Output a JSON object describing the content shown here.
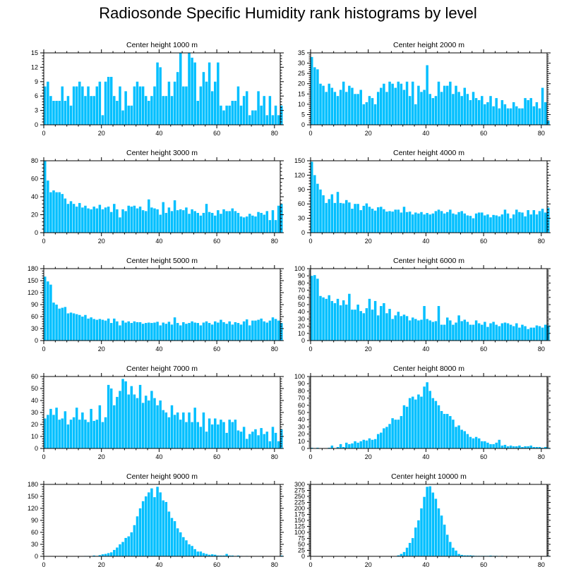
{
  "figure_title": "Radiosonde Specific Humidity rank histograms by level",
  "colors": {
    "bar": "#00BFFF",
    "axis": "#000000",
    "bar_edge": "#ffffff"
  },
  "chart_data": [
    {
      "type": "bar",
      "title": "Center height 1000 m",
      "xlim": [
        0,
        82
      ],
      "ylim": [
        0,
        15
      ],
      "xticks": [
        0,
        20,
        40,
        60,
        80
      ],
      "yticks": [
        0,
        3,
        6,
        9,
        12,
        15
      ],
      "values": [
        8,
        9,
        6,
        5,
        5,
        5,
        8,
        5,
        6,
        4,
        8,
        8,
        9,
        8,
        6,
        8,
        6,
        6,
        8,
        9,
        2,
        9,
        10,
        10,
        6,
        5,
        8,
        3,
        7,
        4,
        4,
        8,
        9,
        8,
        8,
        6,
        5,
        6,
        8,
        13,
        12,
        6,
        6,
        9,
        6,
        9,
        11,
        15,
        8,
        8,
        15,
        14,
        13,
        5,
        8,
        11,
        9,
        13,
        7,
        9,
        13,
        4,
        3,
        4,
        4,
        5,
        5,
        8,
        4,
        6,
        7,
        2,
        3,
        3,
        7,
        4,
        6,
        2,
        6,
        2,
        4,
        2,
        4
      ]
    },
    {
      "type": "bar",
      "title": "Center height 2000 m",
      "xlim": [
        0,
        82
      ],
      "ylim": [
        0,
        35
      ],
      "xticks": [
        0,
        20,
        40,
        60,
        80
      ],
      "yticks": [
        0,
        5,
        10,
        15,
        20,
        25,
        30,
        35
      ],
      "values": [
        33,
        28,
        27,
        20,
        19,
        16,
        20,
        18,
        16,
        14,
        17,
        21,
        16,
        19,
        18,
        15,
        15,
        17,
        10,
        11,
        14,
        13,
        10,
        16,
        18,
        20,
        16,
        21,
        20,
        18,
        21,
        20,
        17,
        21,
        14,
        21,
        10,
        19,
        16,
        17,
        29,
        15,
        13,
        14,
        21,
        16,
        19,
        19,
        21,
        15,
        19,
        16,
        14,
        18,
        15,
        12,
        16,
        13,
        12,
        14,
        10,
        11,
        14,
        9,
        13,
        8,
        12,
        10,
        8,
        8,
        11,
        9,
        8,
        8,
        13,
        12,
        13,
        9,
        11,
        8,
        18,
        11,
        2
      ]
    },
    {
      "type": "bar",
      "title": "Center height 3000 m",
      "xlim": [
        0,
        82
      ],
      "ylim": [
        0,
        80
      ],
      "xticks": [
        0,
        20,
        40,
        60,
        80
      ],
      "yticks": [
        0,
        20,
        40,
        60,
        80
      ],
      "values": [
        80,
        58,
        45,
        47,
        45,
        45,
        43,
        38,
        32,
        35,
        32,
        29,
        33,
        28,
        30,
        27,
        26,
        29,
        27,
        31,
        26,
        28,
        29,
        23,
        32,
        26,
        17,
        26,
        24,
        30,
        29,
        30,
        27,
        29,
        25,
        24,
        37,
        28,
        27,
        26,
        20,
        34,
        22,
        28,
        24,
        36,
        25,
        26,
        25,
        28,
        21,
        26,
        24,
        22,
        19,
        22,
        32,
        23,
        22,
        19,
        25,
        21,
        26,
        24,
        24,
        27,
        24,
        22,
        18,
        17,
        18,
        21,
        19,
        18,
        23,
        22,
        20,
        24,
        14,
        25,
        14,
        30,
        32
      ]
    },
    {
      "type": "bar",
      "title": "Center height 4000 m",
      "xlim": [
        0,
        82
      ],
      "ylim": [
        0,
        150
      ],
      "xticks": [
        0,
        20,
        40,
        60,
        80
      ],
      "yticks": [
        0,
        30,
        60,
        90,
        120,
        150
      ],
      "values": [
        148,
        120,
        102,
        90,
        78,
        62,
        70,
        80,
        62,
        85,
        62,
        61,
        68,
        63,
        50,
        60,
        60,
        47,
        56,
        61,
        54,
        50,
        46,
        53,
        54,
        49,
        44,
        45,
        44,
        48,
        48,
        42,
        54,
        43,
        44,
        38,
        42,
        40,
        43,
        38,
        41,
        38,
        40,
        45,
        48,
        45,
        40,
        43,
        48,
        40,
        38,
        43,
        45,
        40,
        36,
        35,
        30,
        40,
        42,
        42,
        36,
        38,
        32,
        37,
        36,
        34,
        38,
        48,
        40,
        30,
        38,
        48,
        43,
        42,
        34,
        47,
        38,
        47,
        38,
        45,
        50,
        42,
        52
      ]
    },
    {
      "type": "bar",
      "title": "Center height 5000 m",
      "xlim": [
        0,
        82
      ],
      "ylim": [
        0,
        180
      ],
      "xticks": [
        0,
        20,
        40,
        60,
        80
      ],
      "yticks": [
        0,
        30,
        60,
        90,
        120,
        150,
        180
      ],
      "values": [
        160,
        148,
        140,
        95,
        90,
        80,
        82,
        84,
        68,
        70,
        68,
        66,
        64,
        60,
        64,
        55,
        58,
        54,
        52,
        54,
        52,
        50,
        55,
        44,
        55,
        48,
        38,
        50,
        45,
        48,
        44,
        48,
        46,
        46,
        42,
        44,
        45,
        44,
        45,
        47,
        38,
        45,
        42,
        47,
        40,
        58,
        44,
        38,
        46,
        42,
        44,
        48,
        45,
        44,
        38,
        45,
        48,
        44,
        40,
        48,
        45,
        52,
        46,
        42,
        48,
        40,
        46,
        44,
        40,
        48,
        53,
        38,
        50,
        50,
        52,
        55,
        48,
        45,
        50,
        58,
        54,
        50,
        44
      ]
    },
    {
      "type": "bar",
      "title": "Center height 6000 m",
      "xlim": [
        0,
        82
      ],
      "ylim": [
        0,
        100
      ],
      "xticks": [
        0,
        20,
        40,
        60,
        80
      ],
      "yticks": [
        0,
        10,
        20,
        30,
        40,
        50,
        60,
        70,
        80,
        90,
        100
      ],
      "values": [
        90,
        91,
        86,
        62,
        60,
        58,
        63,
        55,
        52,
        58,
        49,
        56,
        50,
        65,
        43,
        43,
        50,
        41,
        38,
        45,
        58,
        43,
        55,
        35,
        48,
        52,
        38,
        44,
        30,
        35,
        40,
        34,
        36,
        34,
        28,
        32,
        30,
        28,
        29,
        48,
        30,
        28,
        26,
        27,
        48,
        22,
        22,
        32,
        28,
        22,
        25,
        35,
        27,
        29,
        26,
        22,
        22,
        28,
        24,
        22,
        26,
        19,
        24,
        26,
        22,
        20,
        24,
        25,
        24,
        22,
        20,
        24,
        18,
        22,
        20,
        16,
        18,
        18,
        21,
        20,
        18,
        22,
        21
      ]
    },
    {
      "type": "bar",
      "title": "Center height 7000 m",
      "xlim": [
        0,
        82
      ],
      "ylim": [
        0,
        60
      ],
      "xticks": [
        0,
        20,
        40,
        60,
        80
      ],
      "yticks": [
        0,
        10,
        20,
        30,
        40,
        50,
        60
      ],
      "values": [
        25,
        28,
        33,
        28,
        34,
        24,
        25,
        31,
        20,
        24,
        26,
        34,
        24,
        30,
        24,
        22,
        33,
        23,
        24,
        36,
        22,
        26,
        53,
        50,
        36,
        43,
        48,
        58,
        56,
        45,
        52,
        45,
        42,
        53,
        38,
        44,
        40,
        48,
        42,
        36,
        40,
        32,
        30,
        26,
        36,
        28,
        30,
        24,
        30,
        22,
        30,
        22,
        34,
        22,
        18,
        30,
        14,
        25,
        20,
        25,
        20,
        24,
        22,
        13,
        24,
        22,
        24,
        15,
        14,
        18,
        8,
        12,
        14,
        16,
        11,
        17,
        12,
        14,
        6,
        18,
        13,
        6,
        16
      ]
    },
    {
      "type": "bar",
      "title": "Center height 8000 m",
      "xlim": [
        0,
        82
      ],
      "ylim": [
        0,
        100
      ],
      "xticks": [
        0,
        20,
        40,
        60,
        80
      ],
      "yticks": [
        0,
        10,
        20,
        30,
        40,
        50,
        60,
        70,
        80,
        90,
        100
      ],
      "values": [
        1,
        0,
        1,
        0,
        0,
        0,
        1,
        4,
        0,
        2,
        6,
        2,
        8,
        6,
        7,
        10,
        8,
        10,
        12,
        11,
        14,
        12,
        13,
        20,
        22,
        28,
        30,
        34,
        42,
        40,
        40,
        45,
        60,
        58,
        70,
        72,
        68,
        75,
        72,
        86,
        92,
        80,
        70,
        66,
        60,
        52,
        48,
        48,
        45,
        40,
        30,
        32,
        26,
        24,
        20,
        16,
        14,
        16,
        14,
        10,
        10,
        8,
        6,
        6,
        8,
        12,
        4,
        5,
        3,
        4,
        3,
        3,
        4,
        2,
        3,
        3,
        4,
        2,
        2,
        2,
        1,
        2,
        1
      ]
    },
    {
      "type": "bar",
      "title": "Center height 9000 m",
      "xlim": [
        0,
        82
      ],
      "ylim": [
        0,
        180
      ],
      "xticks": [
        0,
        20,
        40,
        60,
        80
      ],
      "yticks": [
        0,
        30,
        60,
        90,
        120,
        150,
        180
      ],
      "values": [
        0,
        0,
        0,
        0,
        0,
        0,
        0,
        0,
        0,
        0,
        0,
        0,
        0,
        0,
        1,
        1,
        0,
        2,
        1,
        3,
        5,
        6,
        8,
        10,
        16,
        22,
        30,
        36,
        46,
        50,
        60,
        78,
        100,
        120,
        138,
        150,
        160,
        170,
        148,
        174,
        160,
        140,
        136,
        112,
        96,
        88,
        70,
        60,
        48,
        40,
        30,
        26,
        18,
        12,
        12,
        8,
        6,
        4,
        5,
        4,
        2,
        2,
        2,
        6,
        2,
        2,
        1,
        2,
        1,
        0,
        1,
        0,
        0,
        0,
        0,
        1,
        0,
        0,
        0,
        0,
        0,
        0,
        2
      ]
    },
    {
      "type": "bar",
      "title": "Center height 10000 m",
      "xlim": [
        0,
        82
      ],
      "ylim": [
        0,
        300
      ],
      "xticks": [
        0,
        20,
        40,
        60,
        80
      ],
      "yticks": [
        0,
        25,
        50,
        75,
        100,
        125,
        150,
        175,
        200,
        225,
        250,
        275,
        300
      ],
      "values": [
        0,
        0,
        0,
        0,
        0,
        0,
        0,
        0,
        0,
        0,
        0,
        0,
        0,
        0,
        0,
        0,
        0,
        0,
        0,
        0,
        0,
        0,
        0,
        0,
        0,
        0,
        0,
        0,
        0,
        0,
        4,
        10,
        18,
        36,
        56,
        76,
        120,
        150,
        200,
        248,
        290,
        292,
        266,
        240,
        200,
        170,
        132,
        90,
        60,
        36,
        24,
        10,
        6,
        4,
        4,
        4,
        3,
        2,
        2,
        2,
        2,
        2,
        3,
        2,
        2,
        1,
        2,
        1,
        1,
        1,
        1,
        1,
        1,
        1,
        1,
        1,
        1,
        1,
        1,
        1,
        1,
        1,
        2
      ]
    }
  ]
}
